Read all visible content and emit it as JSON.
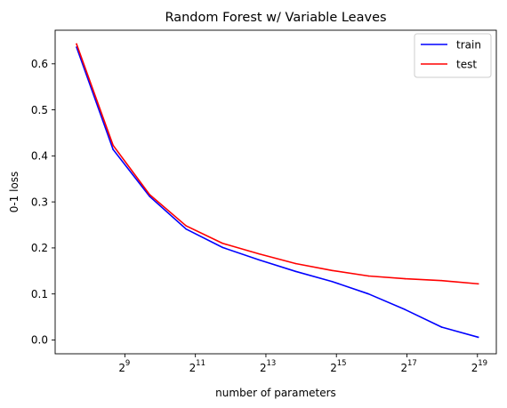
{
  "chart_data": {
    "type": "line",
    "title": "Random Forest w/ Variable Leaves",
    "xlabel": "number of parameters",
    "ylabel": "0-1 loss",
    "x_scale": "log2",
    "xlim": [
      130,
      760000
    ],
    "ylim": [
      -0.03,
      0.673
    ],
    "x_ticks": [
      {
        "value": 512,
        "base": "2",
        "exp": "9"
      },
      {
        "value": 2048,
        "base": "2",
        "exp": "11"
      },
      {
        "value": 8192,
        "base": "2",
        "exp": "13"
      },
      {
        "value": 32768,
        "base": "2",
        "exp": "15"
      },
      {
        "value": 131072,
        "base": "2",
        "exp": "17"
      },
      {
        "value": 524288,
        "base": "2",
        "exp": "19"
      }
    ],
    "y_ticks": [
      {
        "value": 0.0,
        "label": "0.0"
      },
      {
        "value": 0.1,
        "label": "0.1"
      },
      {
        "value": 0.2,
        "label": "0.2"
      },
      {
        "value": 0.3,
        "label": "0.3"
      },
      {
        "value": 0.4,
        "label": "0.4"
      },
      {
        "value": 0.5,
        "label": "0.5"
      },
      {
        "value": 0.6,
        "label": "0.6"
      }
    ],
    "grid": false,
    "legend_position": "top-right",
    "series": [
      {
        "name": "train",
        "color": "#0000ff",
        "x": [
          198,
          406,
          832,
          1706,
          3496,
          7166,
          14690,
          30112,
          61728,
          126540,
          259396,
          531732
        ],
        "y": [
          0.636,
          0.414,
          0.312,
          0.241,
          0.201,
          0.174,
          0.149,
          0.127,
          0.1,
          0.066,
          0.028,
          0.006
        ]
      },
      {
        "name": "test",
        "color": "#ff0000",
        "x": [
          198,
          406,
          832,
          1706,
          3496,
          7166,
          14690,
          30112,
          61728,
          126540,
          259396,
          531732
        ],
        "y": [
          0.643,
          0.423,
          0.316,
          0.248,
          0.21,
          0.187,
          0.166,
          0.151,
          0.139,
          0.133,
          0.129,
          0.122
        ]
      }
    ]
  }
}
